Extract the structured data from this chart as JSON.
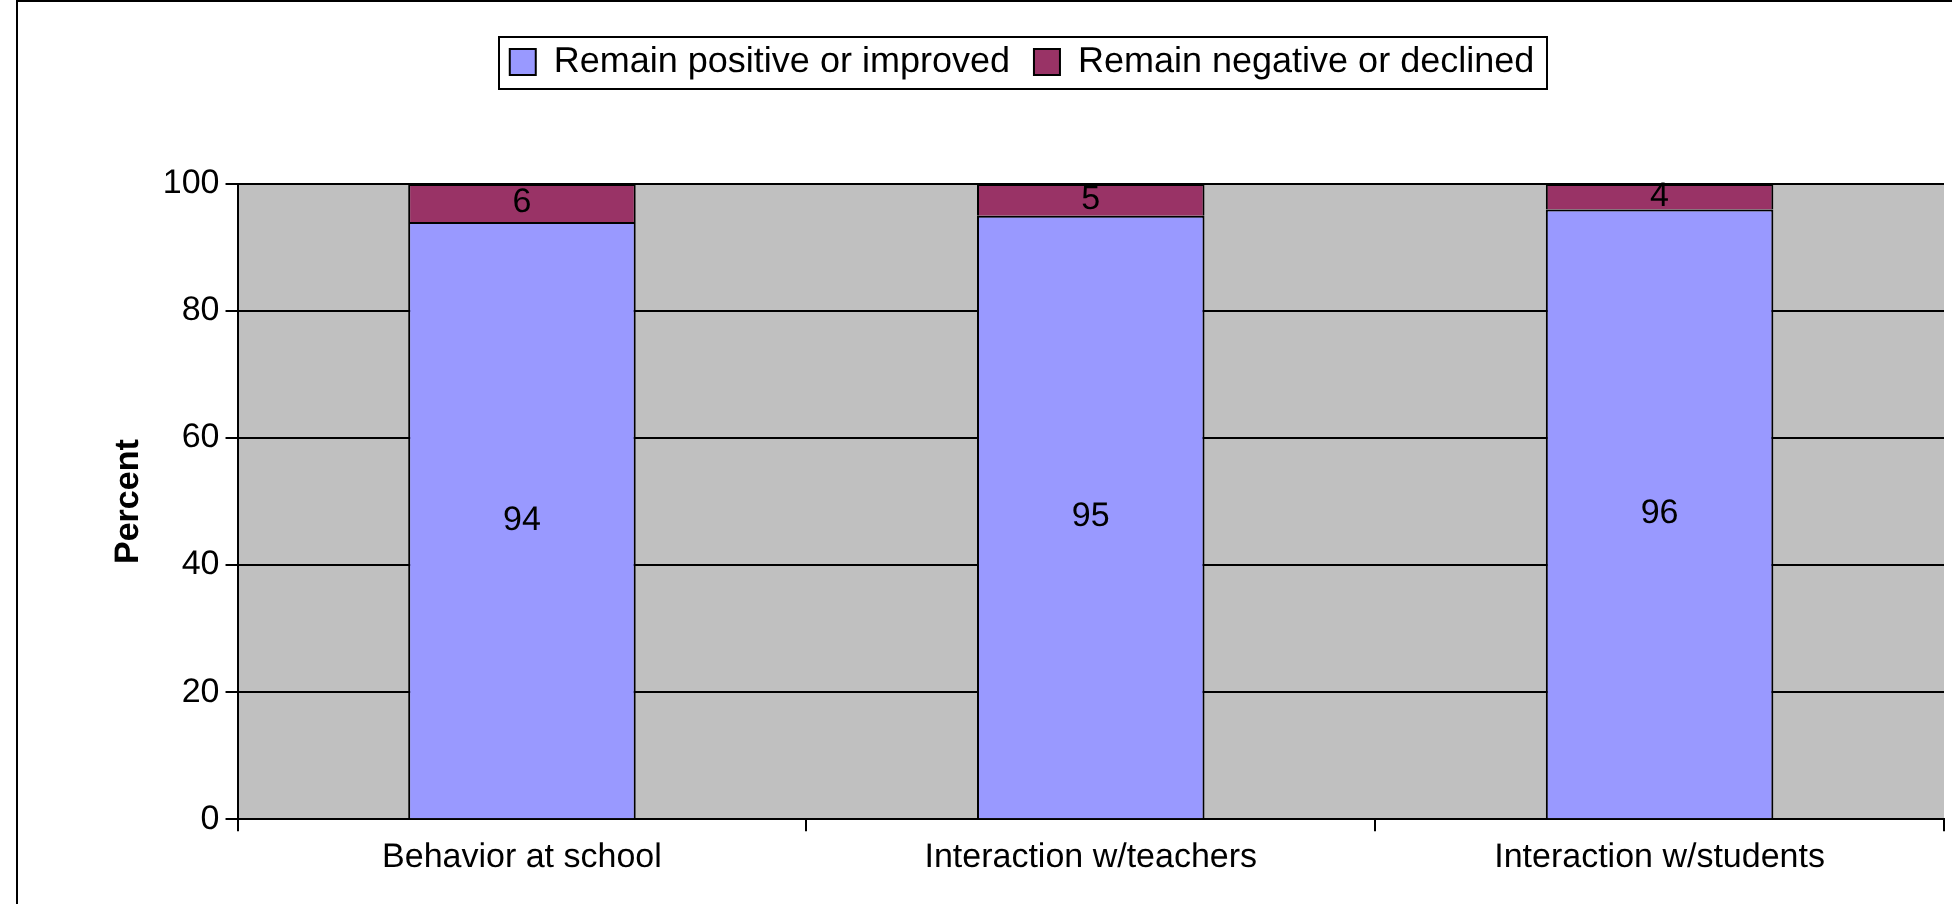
{
  "chart_data": {
    "type": "bar",
    "stacked": true,
    "ylabel": "Percent",
    "categories": [
      "Behavior at school",
      "Interaction w/teachers",
      "Interaction w/students"
    ],
    "series": [
      {
        "name": "Remain positive or improved",
        "color": "#9999ff",
        "values": [
          94,
          95,
          96
        ]
      },
      {
        "name": "Remain negative or declined",
        "color": "#993366",
        "values": [
          6,
          5,
          4
        ]
      }
    ],
    "ylim": [
      0,
      100
    ],
    "yticks": [
      0,
      20,
      40,
      60,
      80,
      100
    ],
    "grid": "y",
    "legend": "top",
    "data_labels": true
  }
}
